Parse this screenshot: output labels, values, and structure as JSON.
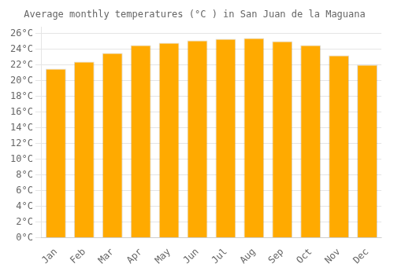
{
  "chart_data": {
    "type": "bar",
    "title": "Average monthly temperatures (°C ) in San Juan de la Maguana",
    "categories": [
      "Jan",
      "Feb",
      "Mar",
      "Apr",
      "May",
      "Jun",
      "Jul",
      "Aug",
      "Sep",
      "Oct",
      "Nov",
      "Dec"
    ],
    "values": [
      21.5,
      22.4,
      23.5,
      24.5,
      24.8,
      25.1,
      25.3,
      25.4,
      25.0,
      24.5,
      23.2,
      22.0
    ],
    "color": "#FFAA00",
    "ylim": [
      0,
      26.8
    ],
    "yticks": [
      {
        "value": 0,
        "label": "0°C"
      },
      {
        "value": 2,
        "label": "2°C"
      },
      {
        "value": 4,
        "label": "4°C"
      },
      {
        "value": 6,
        "label": "6°C"
      },
      {
        "value": 8,
        "label": "8°C"
      },
      {
        "value": 10,
        "label": "10°C"
      },
      {
        "value": 12,
        "label": "12°C"
      },
      {
        "value": 14,
        "label": "14°C"
      },
      {
        "value": 16,
        "label": "16°C"
      },
      {
        "value": 18,
        "label": "18°C"
      },
      {
        "value": 20,
        "label": "20°C"
      },
      {
        "value": 22,
        "label": "22°C"
      },
      {
        "value": 24,
        "label": "24°C"
      },
      {
        "value": 26,
        "label": "26°C"
      }
    ],
    "grid": true
  }
}
